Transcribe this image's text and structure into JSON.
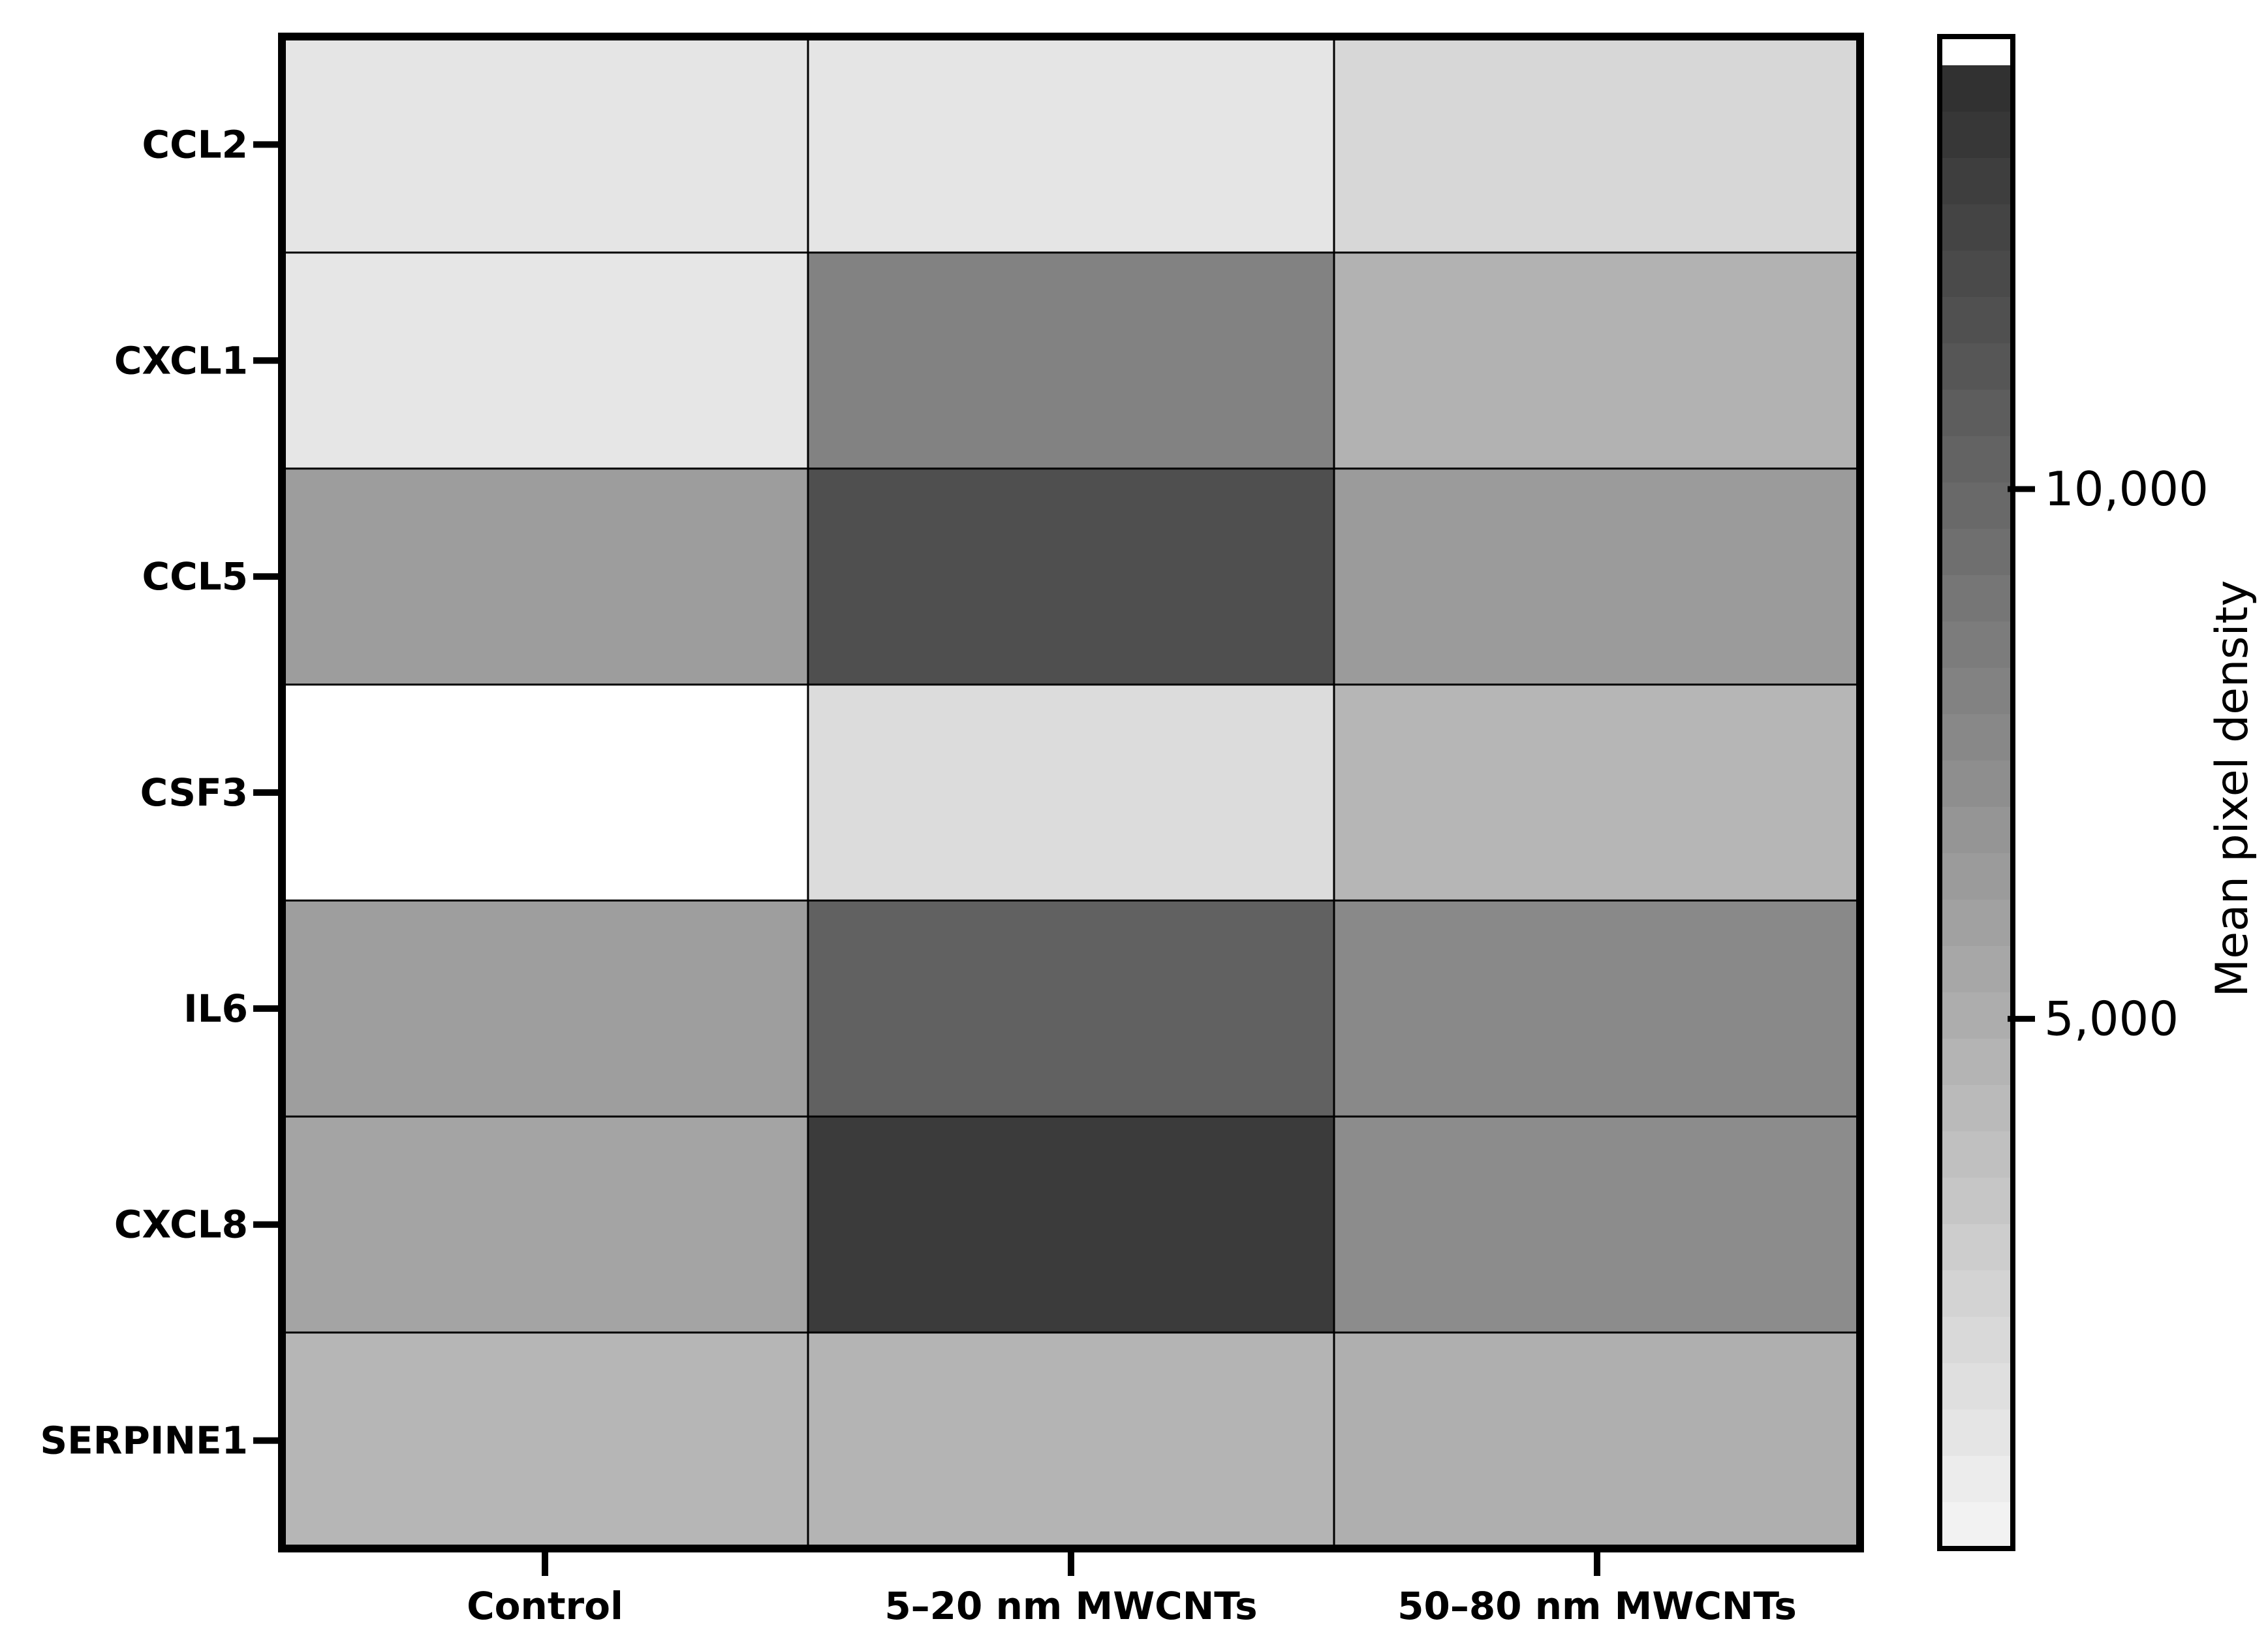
{
  "chart_data": {
    "type": "heatmap",
    "title": "",
    "columns": [
      "Control",
      "5–20 nm MWCNTs",
      "50–80 nm MWCNTs"
    ],
    "rows": [
      "CCL2",
      "CXCL1",
      "CCL5",
      "CSF3",
      "IL6",
      "CXCL8",
      "SERPINE1"
    ],
    "values": [
      [
        1150,
        1100,
        2100
      ],
      [
        1050,
        8100,
        4700
      ],
      [
        6200,
        11700,
        6300
      ],
      [
        0,
        1750,
        4400
      ],
      [
        6100,
        10400,
        7600
      ],
      [
        5700,
        13100,
        7400
      ],
      [
        4400,
        4600,
        4900
      ]
    ],
    "colorbar": {
      "title": "Mean pixel density",
      "range": [
        0,
        14000
      ],
      "ticks": [
        5000,
        10000
      ],
      "tick_labels": [
        "5,000",
        "10,000"
      ],
      "top_cap": "white",
      "low_color": "#f5f5f5",
      "high_color": "#2e2e2e"
    },
    "grid": true,
    "legend": "right"
  },
  "colors": {
    "frame": "#000000",
    "cell_border": "#000000",
    "background": "#ffffff"
  }
}
